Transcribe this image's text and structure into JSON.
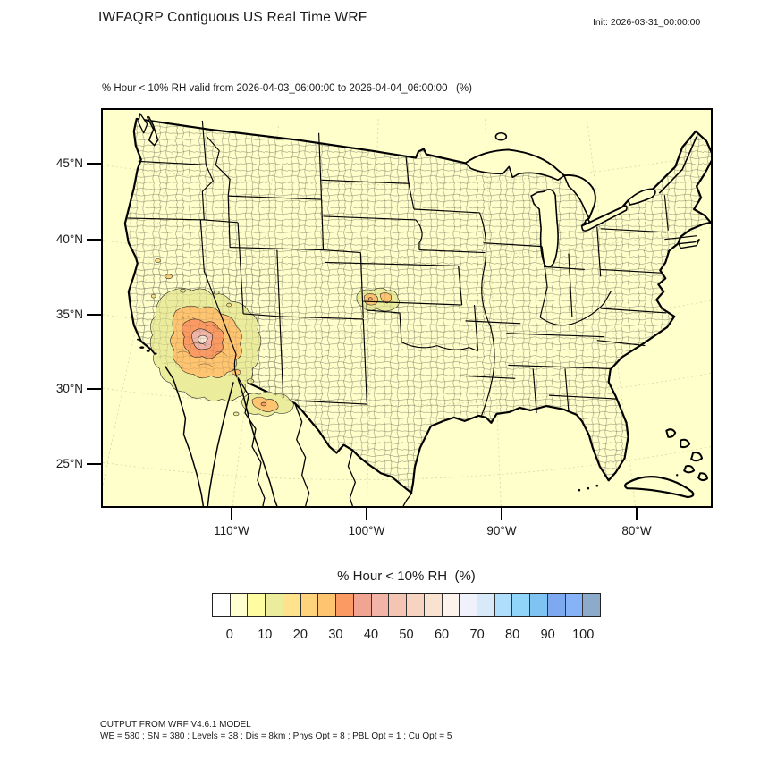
{
  "header": {
    "title": "IWFAQRP Contiguous US Real Time WRF",
    "init_label": "Init: 2026-03-31_00:00:00"
  },
  "map": {
    "subtitle": "% Hour < 10% RH valid from 2026-04-03_06:00:00 to 2026-04-04_06:00:00   (%)",
    "background_color": "#FFFFCC",
    "x_ticks": [
      "110°W",
      "100°W",
      "90°W",
      "80°W"
    ],
    "y_ticks": [
      "45°N",
      "40°N",
      "35°N",
      "30°N",
      "25°N"
    ]
  },
  "colorbar": {
    "title": "% Hour < 10% RH  (%)",
    "tick_labels": [
      "0",
      "10",
      "20",
      "30",
      "40",
      "50",
      "60",
      "70",
      "80",
      "90",
      "100"
    ],
    "colors": [
      "#FFFFFF",
      "#FFFFD0",
      "#FFFCA1",
      "#ECEC9D",
      "#FFE38C",
      "#FFD37B",
      "#FFC470",
      "#FB9A63",
      "#EFA592",
      "#F2B4A6",
      "#F4C5B3",
      "#F7D4C1",
      "#FAE2D1",
      "#FDF3ED",
      "#EFF2FB",
      "#D8E9FA",
      "#AEDEFB",
      "#90D4F9",
      "#7FC3F3",
      "#7EA8EF",
      "#86B2F8",
      "#8CABCB"
    ]
  },
  "footer": {
    "line1": "OUTPUT FROM WRF V4.6.1 MODEL",
    "line2": "WE = 580 ; SN = 380 ; Levels = 38 ; Dis = 8km ; Phys Opt = 8 ; PBL Opt = 1 ; Cu Opt = 5"
  },
  "chart_data": {
    "type": "heatmap",
    "title": "% Hour < 10% RH valid from 2026-04-03_06:00:00 to 2026-04-04_06:00:00 (%)",
    "subtitle_init": "Init: 2026-03-31_00:00:00",
    "geography": "Contiguous United States with county boundaries, Lambert conformal style projection",
    "x_axis": {
      "label": "longitude",
      "ticks": [
        "110°W",
        "100°W",
        "90°W",
        "80°W"
      ]
    },
    "y_axis": {
      "label": "latitude",
      "ticks": [
        "45°N",
        "40°N",
        "35°N",
        "30°N",
        "25°N"
      ]
    },
    "legend": {
      "title": "% Hour < 10% RH  (%)",
      "tick_values": [
        0,
        10,
        20,
        30,
        40,
        50,
        60,
        70,
        80,
        90,
        100
      ],
      "bin_width": 5,
      "n_cells": 22,
      "cell_colors": [
        "#FFFFFF",
        "#FFFFD0",
        "#FFFCA1",
        "#ECEC9D",
        "#FFE38C",
        "#FFD37B",
        "#FFC470",
        "#FB9A63",
        "#EFA592",
        "#F2B4A6",
        "#F4C5B3",
        "#F7D4C1",
        "#FAE2D1",
        "#FDF3ED",
        "#EFF2FB",
        "#D8E9FA",
        "#AEDEFB",
        "#90D4F9",
        "#7FC3F3",
        "#7EA8EF",
        "#86B2F8",
        "#8CABCB"
      ],
      "position": "bottom"
    },
    "background_value": "near 0% (pale yellow) over most of the domain",
    "regions": [
      {
        "area": "Southern California / southern Nevada / western Arizona",
        "approx_value_range": "5-60%",
        "appearance": "large multi-ring filled contour cluster (yellow-orange-salmon-pink)"
      },
      {
        "area": "Southeast Colorado / southwest Kansas / Oklahoma panhandle",
        "approx_value_range": "5-30%",
        "appearance": "small orange patch"
      },
      {
        "area": "Southern New Mexico / far west Texas border",
        "approx_value_range": "5-30%",
        "appearance": "small orange patch"
      }
    ]
  }
}
